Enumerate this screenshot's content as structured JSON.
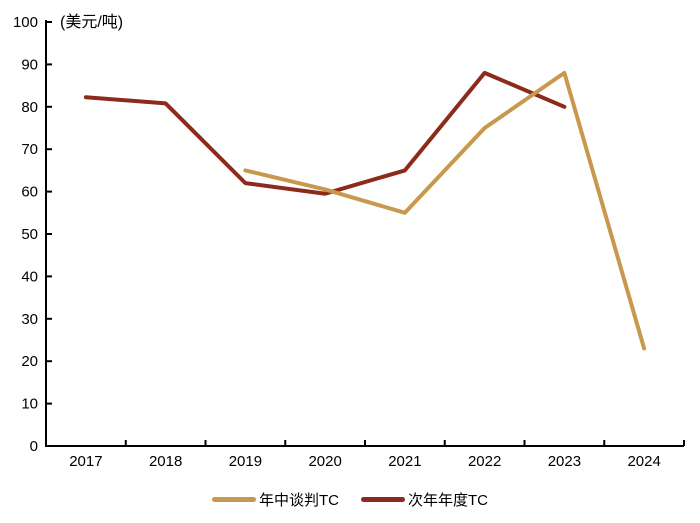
{
  "chart_data": {
    "type": "line",
    "title": "",
    "unit_label": "(美元/吨)",
    "xlabel": "",
    "ylabel": "",
    "categories": [
      "2017",
      "2018",
      "2019",
      "2020",
      "2021",
      "2022",
      "2023",
      "2024"
    ],
    "ylim": [
      0,
      100
    ],
    "y_ticks": [
      0,
      10,
      20,
      30,
      40,
      50,
      60,
      70,
      80,
      90,
      100
    ],
    "grid": false,
    "legend_position": "bottom-center",
    "axis_color": "#000000",
    "line_width": 4,
    "series": [
      {
        "id": "midyear-tc",
        "name": "年中谈判TC",
        "color": "#C9984F",
        "x": [
          "2019",
          "2020",
          "2021",
          "2022",
          "2023",
          "2024"
        ],
        "values": [
          65,
          60.5,
          55,
          75,
          88,
          23
        ]
      },
      {
        "id": "nextyear-annual-tc",
        "name": "次年年度TC",
        "color": "#8C2A1B",
        "x": [
          "2017",
          "2018",
          "2019",
          "2020",
          "2021",
          "2022",
          "2023"
        ],
        "values": [
          82.25,
          80.8,
          62,
          59.5,
          65,
          88,
          80
        ]
      }
    ]
  }
}
